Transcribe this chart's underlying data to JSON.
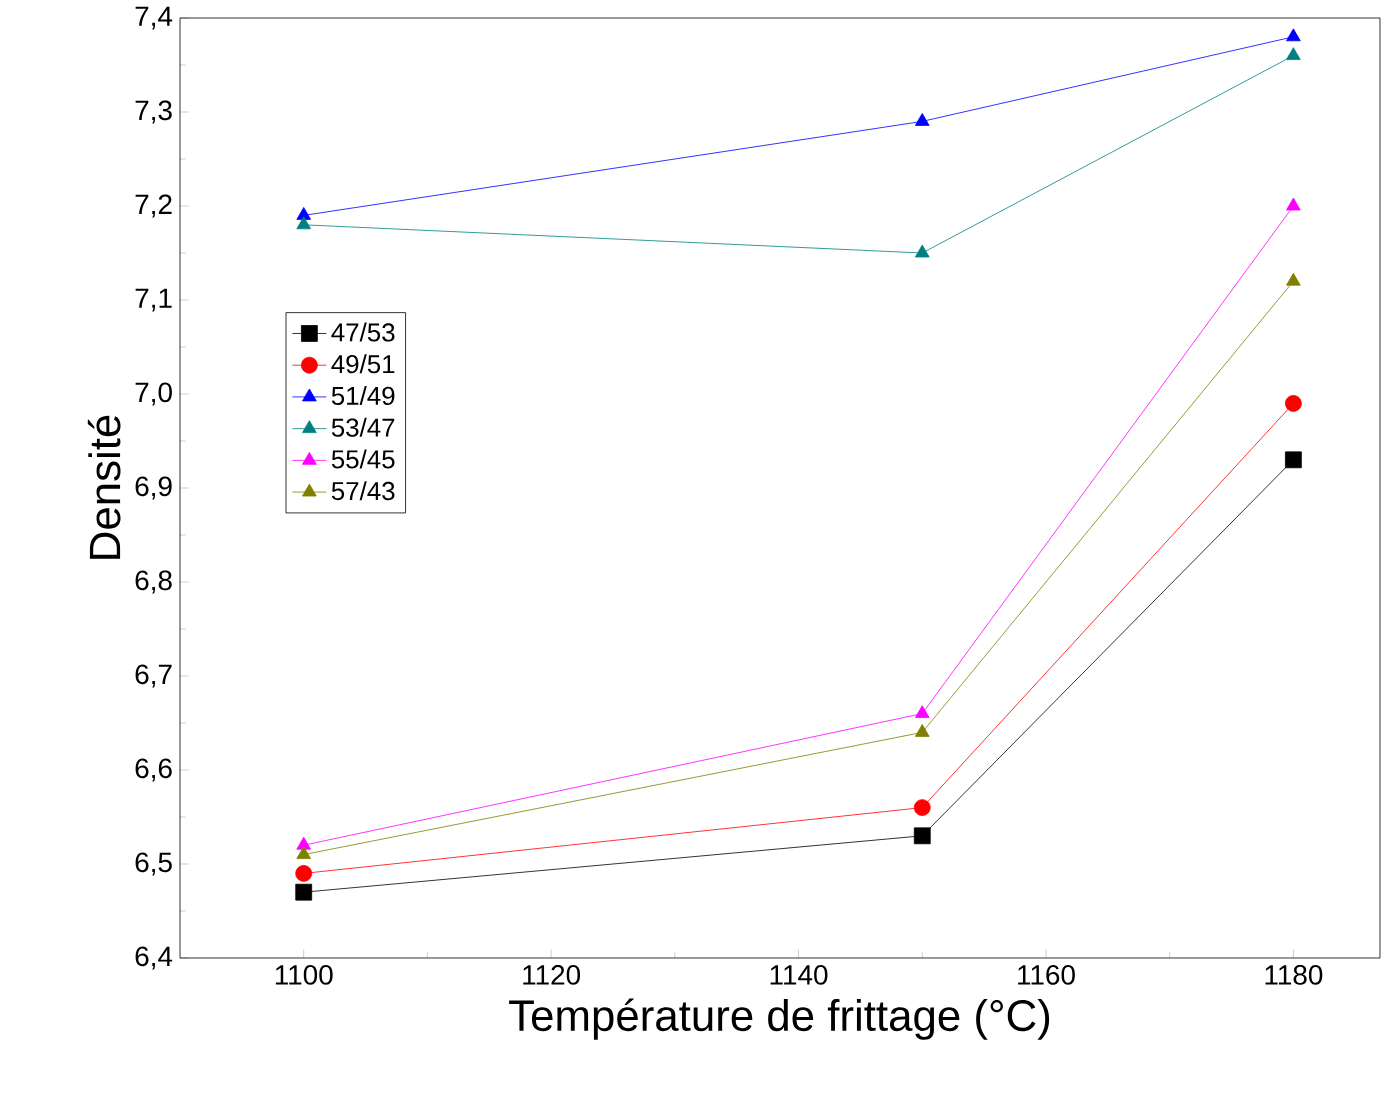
{
  "chart_data": {
    "type": "line",
    "xlabel": "Température de frittage (°C)",
    "ylabel": "Densité",
    "x": [
      1100,
      1150,
      1180
    ],
    "series": [
      {
        "name": "47/53",
        "color": "#000000",
        "marker": "square",
        "values": [
          6.47,
          6.53,
          6.93
        ]
      },
      {
        "name": "49/51",
        "color": "#ff0000",
        "marker": "circle",
        "values": [
          6.49,
          6.56,
          6.99
        ]
      },
      {
        "name": "51/49",
        "color": "#0000ff",
        "marker": "triangle",
        "values": [
          7.19,
          7.29,
          7.38
        ]
      },
      {
        "name": "53/47",
        "color": "#008080",
        "marker": "triangle-down",
        "values": [
          7.18,
          7.15,
          7.36
        ]
      },
      {
        "name": "55/45",
        "color": "#ff00ff",
        "marker": "triangle-left",
        "values": [
          6.52,
          6.66,
          7.2
        ]
      },
      {
        "name": "57/43",
        "color": "#808000",
        "marker": "triangle-right",
        "values": [
          6.51,
          6.64,
          7.12
        ]
      }
    ],
    "xlim": [
      1090,
      1187
    ],
    "xticks": [
      1100,
      1120,
      1140,
      1160,
      1180
    ],
    "ylim": [
      6.4,
      7.4
    ],
    "yticks": [
      {
        "value": 6.4,
        "label": "6,4"
      },
      {
        "value": 6.5,
        "label": "6,5"
      },
      {
        "value": 6.6,
        "label": "6,6"
      },
      {
        "value": 6.7,
        "label": "6,7"
      },
      {
        "value": 6.8,
        "label": "6,8"
      },
      {
        "value": 6.9,
        "label": "6,9"
      },
      {
        "value": 7.0,
        "label": "7,0"
      },
      {
        "value": 7.1,
        "label": "7,1"
      },
      {
        "value": 7.2,
        "label": "7,2"
      },
      {
        "value": 7.3,
        "label": "7,3"
      },
      {
        "value": 7.4,
        "label": "7,4"
      }
    ],
    "grid": false,
    "legend": "left",
    "line_style": "solid"
  }
}
